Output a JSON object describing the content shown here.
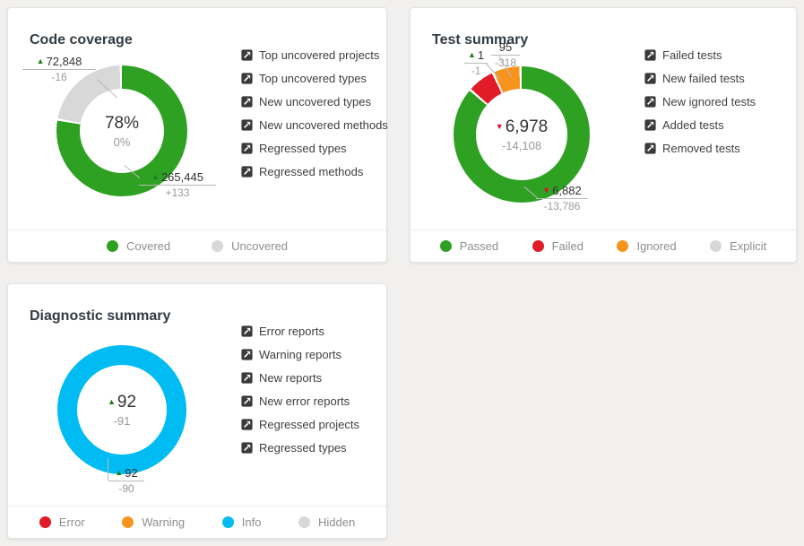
{
  "colors": {
    "passed_green": "#2ea123",
    "failed_red": "#e11b28",
    "ignored_orange": "#f7941e",
    "info_cyan": "#00bcf2",
    "neutral_gray": "#d8d8d8"
  },
  "cards": [
    {
      "title": "Code coverage",
      "links": [
        "Top uncovered projects",
        "Top uncovered types",
        "New uncovered types",
        "New uncovered methods",
        "Regressed types",
        "Regressed methods"
      ],
      "center": {
        "trend": "",
        "value": "78%",
        "delta": "0%"
      },
      "callouts": [
        {
          "trend": "up",
          "value": "72,848",
          "delta": "-16"
        },
        {
          "trend": "up",
          "value": "265,445",
          "delta": "+133"
        }
      ],
      "donut": {
        "segments": [
          {
            "color": "#2ea123",
            "deg": 279
          },
          {
            "color": "#ffffff",
            "deg": 2
          },
          {
            "color": "#d8d8d8",
            "deg": 77
          },
          {
            "color": "#ffffff",
            "deg": 2
          }
        ]
      },
      "legend": [
        {
          "label": "Covered",
          "color": "#2ea123"
        },
        {
          "label": "Uncovered",
          "color": "#d8d8d8"
        }
      ]
    },
    {
      "title": "Test summary",
      "links": [
        "Failed tests",
        "New failed tests",
        "New ignored tests",
        "Added tests",
        "Removed tests"
      ],
      "center": {
        "trend": "down",
        "value": "6,978",
        "delta": "-14,108"
      },
      "callouts": [
        {
          "trend": "up",
          "value": "1",
          "delta": "-1"
        },
        {
          "trend": "",
          "value": "95",
          "delta": "-318"
        },
        {
          "trend": "down",
          "value": "6,882",
          "delta": "-13,786"
        }
      ],
      "donut": {
        "segments": [
          {
            "color": "#2ea123",
            "deg": 310
          },
          {
            "color": "#ffffff",
            "deg": 2
          },
          {
            "color": "#e11b28",
            "deg": 22
          },
          {
            "color": "#ffffff",
            "deg": 2
          },
          {
            "color": "#f7941e",
            "deg": 22
          },
          {
            "color": "#ffffff",
            "deg": 2
          }
        ]
      },
      "legend": [
        {
          "label": "Passed",
          "color": "#2ea123"
        },
        {
          "label": "Failed",
          "color": "#e11b28"
        },
        {
          "label": "Ignored",
          "color": "#f7941e"
        },
        {
          "label": "Explicit",
          "color": "#d8d8d8"
        }
      ]
    },
    {
      "title": "Diagnostic summary",
      "links": [
        "Error reports",
        "Warning reports",
        "New reports",
        "New error reports",
        "Regressed projects",
        "Regressed types"
      ],
      "center": {
        "trend": "up",
        "value": "92",
        "delta": "-91"
      },
      "callouts": [
        {
          "trend": "up",
          "value": "92",
          "delta": "-90"
        }
      ],
      "donut": {
        "segments": [
          {
            "color": "#00bcf2",
            "deg": 360
          }
        ]
      },
      "legend": [
        {
          "label": "Error",
          "color": "#e11b28"
        },
        {
          "label": "Warning",
          "color": "#f7941e"
        },
        {
          "label": "Info",
          "color": "#00bcf2"
        },
        {
          "label": "Hidden",
          "color": "#d8d8d8"
        }
      ]
    }
  ],
  "chart_data": [
    {
      "type": "donut",
      "title": "Code coverage",
      "center": {
        "value": "78%",
        "delta": "0%"
      },
      "segments": [
        {
          "label": "Covered",
          "value": 265445,
          "delta": "+133",
          "percent": 78,
          "color": "#2ea123"
        },
        {
          "label": "Uncovered",
          "value": 72848,
          "delta": "-16",
          "percent": 22,
          "color": "#d8d8d8"
        }
      ],
      "legend_position": "bottom"
    },
    {
      "type": "donut",
      "title": "Test summary",
      "center": {
        "value": 6978,
        "delta": -14108,
        "trend": "down"
      },
      "segments": [
        {
          "label": "Passed",
          "value": 6882,
          "delta": -13786,
          "color": "#2ea123"
        },
        {
          "label": "Failed",
          "value": 1,
          "delta": -1,
          "color": "#e11b28"
        },
        {
          "label": "Ignored",
          "value": 95,
          "delta": -318,
          "color": "#f7941e"
        },
        {
          "label": "Explicit",
          "value": 0,
          "color": "#d8d8d8"
        }
      ],
      "legend_position": "bottom"
    },
    {
      "type": "donut",
      "title": "Diagnostic summary",
      "center": {
        "value": 92,
        "delta": -91,
        "trend": "up"
      },
      "segments": [
        {
          "label": "Error",
          "value": 0,
          "color": "#e11b28"
        },
        {
          "label": "Warning",
          "value": 0,
          "color": "#f7941e"
        },
        {
          "label": "Info",
          "value": 92,
          "delta": -90,
          "color": "#00bcf2"
        },
        {
          "label": "Hidden",
          "value": 0,
          "color": "#d8d8d8"
        }
      ],
      "legend_position": "bottom"
    }
  ]
}
